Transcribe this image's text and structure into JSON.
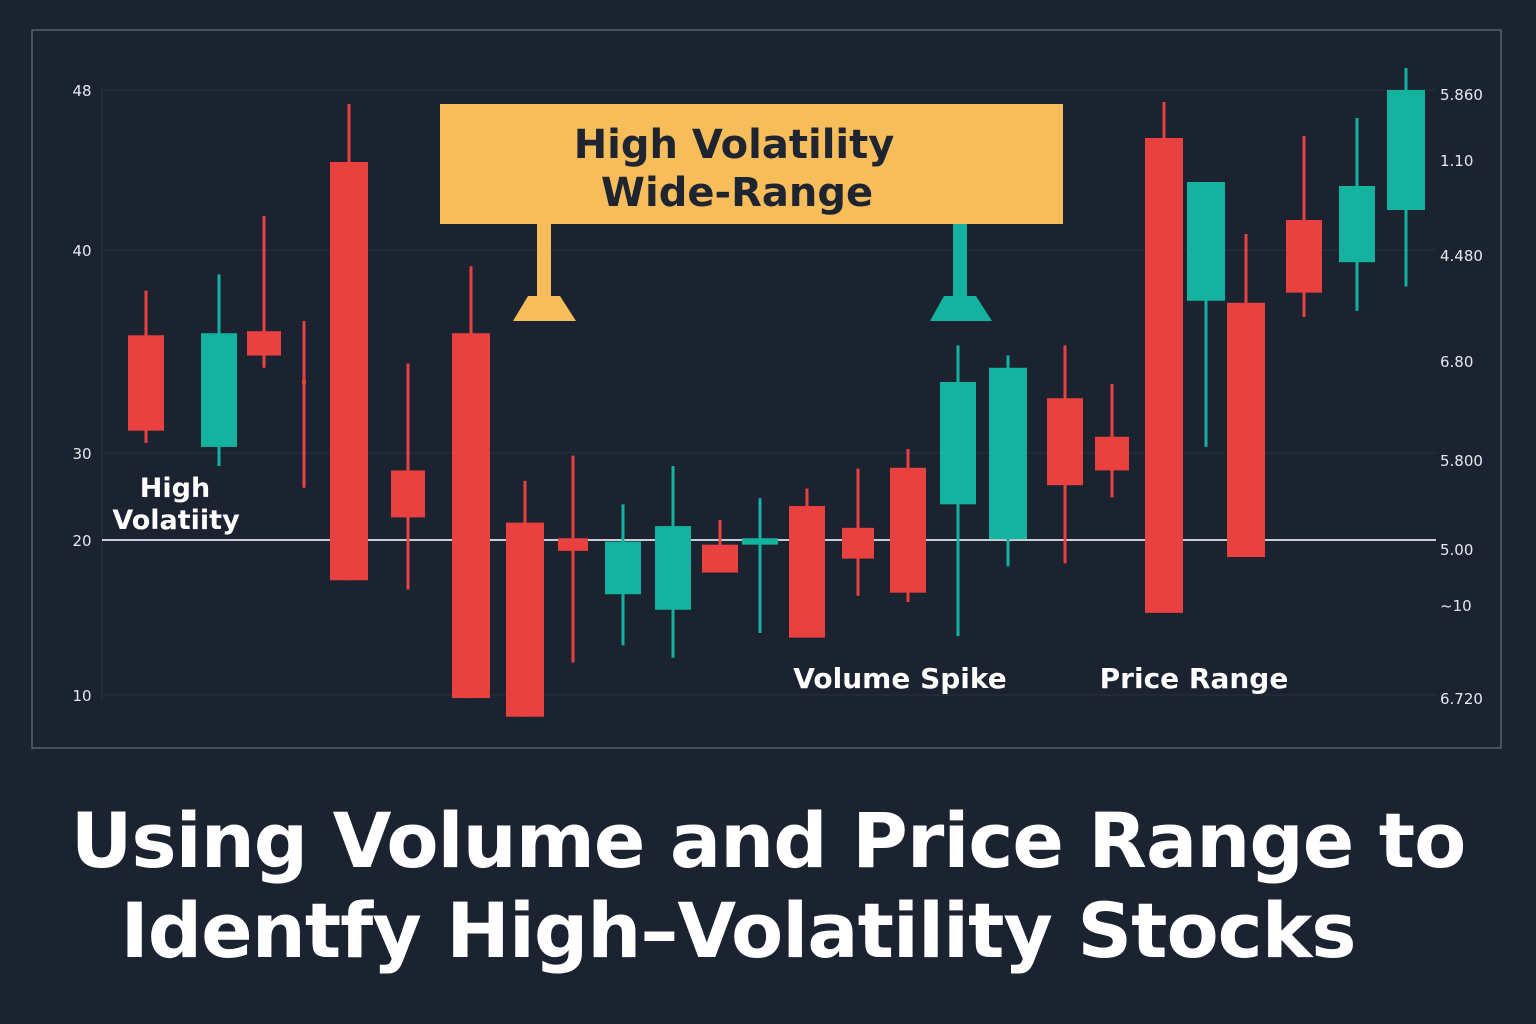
{
  "chart_data": {
    "type": "candlestick",
    "title": "Using Volume and Price Range to Identfy High–Volatility Stocks",
    "title_lines": [
      "Using Volume and Price Range to",
      "Identfy High–Volatility Stocks"
    ],
    "left_axis_ticks": [
      {
        "label": "48",
        "value": 48
      },
      {
        "label": "40",
        "value": 40
      },
      {
        "label": "30",
        "value": 30
      },
      {
        "label": "20",
        "value": 20
      },
      {
        "label": "10",
        "value": 10
      }
    ],
    "right_axis_ticks": [
      "5.860",
      "1.10",
      "4.480",
      "6.80",
      "5.800",
      "5.00",
      "~10",
      "6.720"
    ],
    "reference_line": 20,
    "grid": true,
    "colors": {
      "up": "#14b3a0",
      "down": "#e8413f",
      "callout": "#f7bd5a",
      "background": "#1b2230"
    },
    "candles": [
      {
        "open": 35.8,
        "high": 38.0,
        "low": 30.5,
        "close": 31.1
      },
      {
        "open": 30.3,
        "high": 38.8,
        "low": 28.5,
        "close": 35.9
      },
      {
        "open": 36.0,
        "high": 41.7,
        "low": 34.2,
        "close": 34.8
      },
      {
        "open": 33.6,
        "high": 36.5,
        "low": 26.0,
        "close": 33.4
      },
      {
        "open": 44.4,
        "high": 47.3,
        "low": 17.4,
        "close": 17.4
      },
      {
        "open": 28.0,
        "high": 34.4,
        "low": 16.8,
        "close": 22.6
      },
      {
        "open": 35.9,
        "high": 39.2,
        "low": 9.8,
        "close": 9.8
      },
      {
        "open": 22.0,
        "high": 26.8,
        "low": 8.6,
        "close": 8.6
      },
      {
        "open": 20.2,
        "high": 29.7,
        "low": 12.1,
        "close": 19.3
      },
      {
        "open": 16.5,
        "high": 24.1,
        "low": 13.2,
        "close": 19.9
      },
      {
        "open": 15.5,
        "high": 28.5,
        "low": 12.4,
        "close": 21.6
      },
      {
        "open": 19.7,
        "high": 22.3,
        "low": 17.9,
        "close": 17.9
      },
      {
        "open": 19.7,
        "high": 24.8,
        "low": 14.0,
        "close": 20.2
      },
      {
        "open": 23.9,
        "high": 25.9,
        "low": 13.7,
        "close": 13.7
      },
      {
        "open": 21.4,
        "high": 28.2,
        "low": 16.4,
        "close": 18.8
      },
      {
        "open": 28.3,
        "high": 30.2,
        "low": 16.0,
        "close": 16.6
      },
      {
        "open": 24.1,
        "high": 35.3,
        "low": 13.8,
        "close": 33.5
      },
      {
        "open": 20.1,
        "high": 34.8,
        "low": 18.3,
        "close": 34.2
      },
      {
        "open": 32.7,
        "high": 35.3,
        "low": 18.5,
        "close": 26.3
      },
      {
        "open": 30.8,
        "high": 33.4,
        "low": 24.9,
        "close": 28.0
      },
      {
        "open": 45.6,
        "high": 47.4,
        "low": 15.3,
        "close": 15.3
      },
      {
        "open": 37.5,
        "high": 43.4,
        "low": 30.3,
        "close": 43.4
      },
      {
        "open": 37.4,
        "high": 40.8,
        "low": 18.9,
        "close": 18.9
      },
      {
        "open": 41.5,
        "high": 45.7,
        "low": 36.7,
        "close": 37.9
      },
      {
        "open": 39.4,
        "high": 46.6,
        "low": 37.0,
        "close": 43.2
      },
      {
        "open": 42.0,
        "high": 49.1,
        "low": 38.2,
        "close": 48.0
      }
    ],
    "annotations": {
      "callout_line1": "High Volatility",
      "callout_line2": "Wide-Range",
      "left_label_line1": "High",
      "left_label_line2": "Volatiity",
      "volume_label": "Volume Spike",
      "range_label": "Price Range"
    }
  }
}
